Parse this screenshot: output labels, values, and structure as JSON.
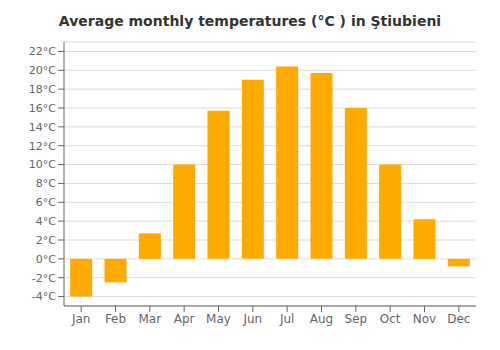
{
  "chart_data": {
    "type": "bar",
    "title": "Average monthly temperatures (°C ) in Ştiubieni",
    "categories": [
      "Jan",
      "Feb",
      "Mar",
      "Apr",
      "May",
      "Jun",
      "Jul",
      "Aug",
      "Sep",
      "Oct",
      "Nov",
      "Dec"
    ],
    "values": [
      -4,
      -2.5,
      2.7,
      10,
      15.7,
      19,
      20.4,
      19.7,
      16,
      10,
      4.2,
      -0.8
    ],
    "color": "#FFAA00",
    "ylim": [
      -5,
      23
    ],
    "yticks": [
      {
        "value": -4,
        "label": "-4°C"
      },
      {
        "value": -2,
        "label": "-2°C"
      },
      {
        "value": 0,
        "label": "0°C"
      },
      {
        "value": 2,
        "label": "2°C"
      },
      {
        "value": 4,
        "label": "4°C"
      },
      {
        "value": 6,
        "label": "6°C"
      },
      {
        "value": 8,
        "label": "8°C"
      },
      {
        "value": 10,
        "label": "10°C"
      },
      {
        "value": 12,
        "label": "12°C"
      },
      {
        "value": 14,
        "label": "14°C"
      },
      {
        "value": 16,
        "label": "16°C"
      },
      {
        "value": 18,
        "label": "18°C"
      },
      {
        "value": 20,
        "label": "20°C"
      },
      {
        "value": 22,
        "label": "22°C"
      }
    ],
    "grid": true
  }
}
